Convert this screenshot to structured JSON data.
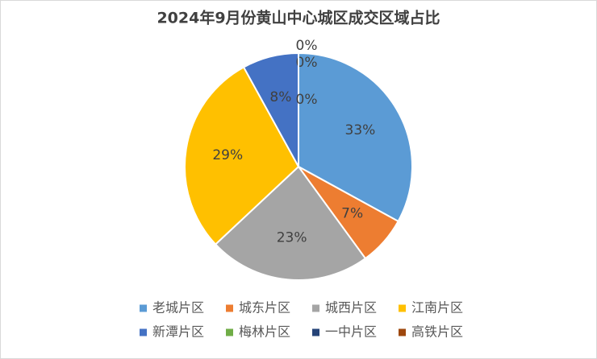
{
  "chart_data": {
    "type": "pie",
    "title": "2024年9月份黄山中心城区成交区域占比",
    "categories": [
      "老城片区",
      "城东片区",
      "城西片区",
      "江南片区",
      "新潭片区",
      "梅林片区",
      "一中片区",
      "高铁片区"
    ],
    "values": [
      33,
      7,
      23,
      29,
      8,
      0,
      0,
      0
    ],
    "value_labels": [
      "33%",
      "7%",
      "23%",
      "29%",
      "8%",
      "0%",
      "0%",
      "0%"
    ],
    "colors": [
      "#5b9bd5",
      "#ed7d31",
      "#a5a5a5",
      "#ffc000",
      "#4472c4",
      "#70ad47",
      "#264478",
      "#9e480e"
    ],
    "legend": "bottom"
  }
}
